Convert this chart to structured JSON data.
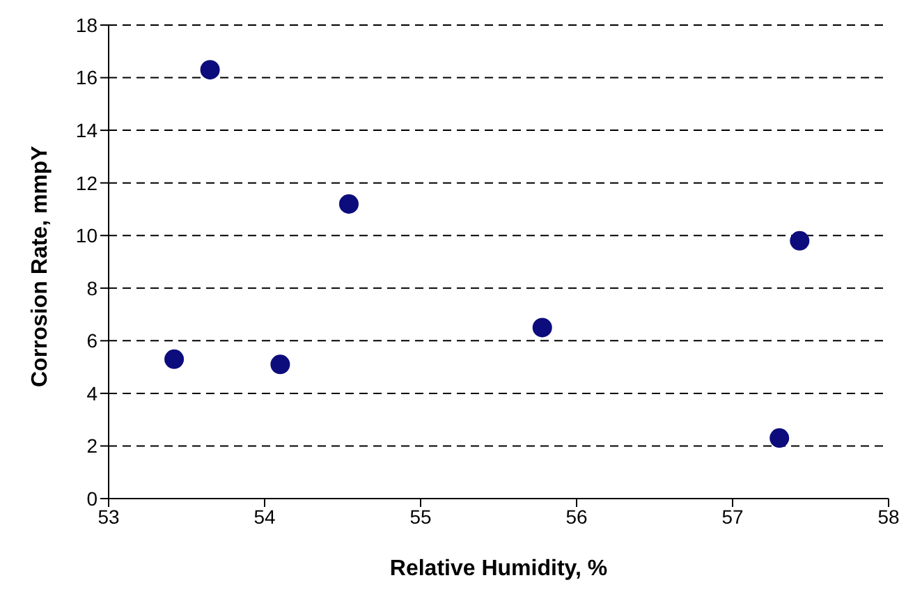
{
  "chart_data": {
    "type": "scatter",
    "xlabel": "Relative Humidity, %",
    "ylabel": "Corrosion Rate, mmpY",
    "x": [
      53.42,
      53.65,
      54.1,
      54.54,
      55.78,
      57.3,
      57.43
    ],
    "series": [
      {
        "color": "#0c0c7c",
        "values": [
          5.3,
          16.3,
          5.1,
          11.2,
          6.5,
          2.3,
          9.8
        ]
      }
    ],
    "xlim": [
      53,
      58
    ],
    "xticks": [
      53,
      54,
      55,
      56,
      57,
      58
    ],
    "ylim": [
      0,
      18
    ],
    "yticks": [
      0,
      2,
      4,
      6,
      8,
      10,
      12,
      14,
      16,
      18
    ],
    "grid": "y",
    "marker": "circle",
    "legend": false
  }
}
